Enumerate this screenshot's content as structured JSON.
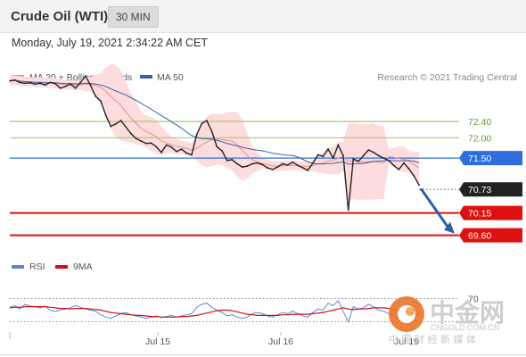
{
  "header": {
    "title": "Crude Oil (WTI)",
    "interval": "30 MIN"
  },
  "datetime": "Monday, July 19, 2021 2:34:22 AM CET",
  "legend": {
    "ma20": "MA 20 + Bollinger Bands",
    "ma50": "MA 50",
    "copyright": "Research © 2021 Trading Central"
  },
  "rsi_legend": {
    "rsi": "RSI",
    "ma9": "9MA"
  },
  "watermark": {
    "text": "中金网",
    "url": "CNGOLD.COM.CN",
    "tagline": "中 国 财 经 新 媒 体"
  },
  "colors": {
    "price": "#222222",
    "bollinger_fill": "#fcdcdc",
    "ma20": "#e89090",
    "ma50": "#3a5fa8",
    "green_level": "#a6cd72",
    "blue_level": "#2d6ddc",
    "red_level": "#dd1111",
    "dark_level": "#222222",
    "arrow": "#2f5ea8",
    "rsi": "#5b86d6",
    "ma9": "#cc1111"
  },
  "chart_data": [
    {
      "type": "line",
      "title": "Crude Oil (WTI)",
      "timeframe": "30 MIN",
      "x_ticks": [
        "Jul 15",
        "Jul 16",
        "Jul 19"
      ],
      "ylim": [
        69.0,
        73.5
      ],
      "levels": [
        {
          "value": 72.4,
          "label": "72.40",
          "style": "green"
        },
        {
          "value": 72.0,
          "label": "72.00",
          "style": "green"
        },
        {
          "value": 71.5,
          "label": "71.50",
          "style": "blue"
        },
        {
          "value": 70.73,
          "label": "70.73",
          "style": "dark"
        },
        {
          "value": 70.15,
          "label": "70.15",
          "style": "red"
        },
        {
          "value": 69.6,
          "label": "69.60",
          "style": "red"
        }
      ],
      "series": [
        {
          "name": "MA 20 + Bollinger Bands",
          "type": "band"
        },
        {
          "name": "MA 50",
          "type": "line"
        }
      ],
      "price": [
        73.4,
        73.42,
        73.36,
        73.34,
        73.35,
        73.32,
        73.34,
        73.3,
        73.36,
        73.33,
        73.22,
        73.26,
        73.32,
        73.22,
        73.36,
        73.52,
        73.28,
        73.02,
        72.9,
        72.55,
        72.28,
        72.34,
        72.42,
        72.26,
        72.1,
        71.98,
        71.92,
        71.86,
        71.87,
        71.78,
        71.64,
        71.82,
        71.77,
        71.66,
        71.72,
        71.62,
        71.58,
        72.08,
        72.35,
        72.42,
        72.15,
        71.78,
        71.68,
        71.44,
        71.46,
        71.36,
        71.28,
        71.3,
        71.36,
        71.38,
        71.34,
        71.26,
        71.22,
        71.28,
        71.36,
        71.33,
        71.4,
        71.32,
        71.26,
        71.2,
        71.38,
        71.58,
        71.54,
        71.72,
        71.5,
        71.82,
        71.56,
        70.22,
        71.48,
        71.42,
        71.56,
        71.7,
        71.64,
        71.56,
        71.5,
        71.44,
        71.32,
        71.22,
        71.38,
        71.24,
        71.06,
        70.84
      ]
    },
    {
      "type": "line",
      "title": "RSI",
      "yticks": [
        70
      ],
      "series": [
        {
          "name": "RSI",
          "values": [
            55,
            58,
            52,
            60,
            57,
            56,
            54,
            57,
            50,
            48,
            50,
            52,
            54,
            58,
            55,
            52,
            50,
            48,
            42,
            38,
            36,
            40,
            44,
            46,
            42,
            40,
            38,
            36,
            38,
            40,
            37,
            39,
            41,
            38,
            40,
            42,
            44,
            55,
            60,
            62,
            55,
            50,
            46,
            40,
            42,
            38,
            36,
            38,
            44,
            46,
            44,
            40,
            38,
            42,
            46,
            44,
            48,
            44,
            40,
            38,
            46,
            52,
            50,
            62,
            58,
            66,
            48,
            30,
            56,
            52,
            54,
            60,
            56,
            50,
            48,
            44,
            42,
            36,
            44,
            40,
            34,
            30
          ]
        },
        {
          "name": "9MA",
          "values": [
            54,
            55,
            55,
            56,
            56,
            56,
            56,
            56,
            55,
            54,
            53,
            53,
            52,
            53,
            53,
            53,
            52,
            51,
            50,
            48,
            46,
            45,
            44,
            43,
            42,
            41,
            41,
            40,
            39,
            39,
            38,
            38,
            38,
            38,
            39,
            39,
            40,
            41,
            43,
            45,
            47,
            49,
            50,
            50,
            49,
            47,
            45,
            43,
            42,
            41,
            41,
            41,
            41,
            41,
            42,
            42,
            43,
            43,
            43,
            43,
            44,
            45,
            46,
            48,
            50,
            52,
            54,
            52,
            51,
            52,
            52,
            53,
            54,
            54,
            54,
            53,
            51,
            49,
            48,
            46,
            44,
            42
          ]
        }
      ]
    }
  ]
}
